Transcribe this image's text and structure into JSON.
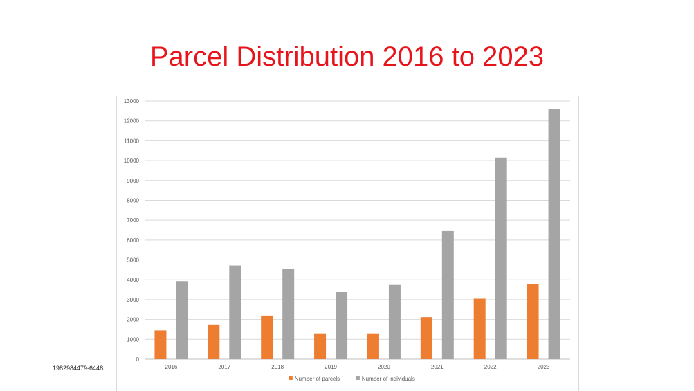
{
  "title": "Parcel Distribution 2016 to 2023",
  "side_code": "1982984479-6448",
  "chart_data": {
    "type": "bar",
    "title": "",
    "xlabel": "",
    "ylabel": "",
    "ylim": [
      0,
      13000
    ],
    "ytick_step": 1000,
    "grid": true,
    "legend_position": "bottom-center",
    "categories": [
      "2016",
      "2017",
      "2018",
      "2019",
      "2020",
      "2021",
      "2022",
      "2023"
    ],
    "series": [
      {
        "name": "Number of parcels",
        "color": "#ed7d31",
        "values": [
          1450,
          1750,
          2200,
          1300,
          1300,
          2120,
          3050,
          3770
        ]
      },
      {
        "name": "Number of individuals",
        "color": "#a5a5a5",
        "values": [
          3930,
          4720,
          4560,
          3380,
          3740,
          6450,
          10150,
          12600
        ]
      }
    ]
  }
}
